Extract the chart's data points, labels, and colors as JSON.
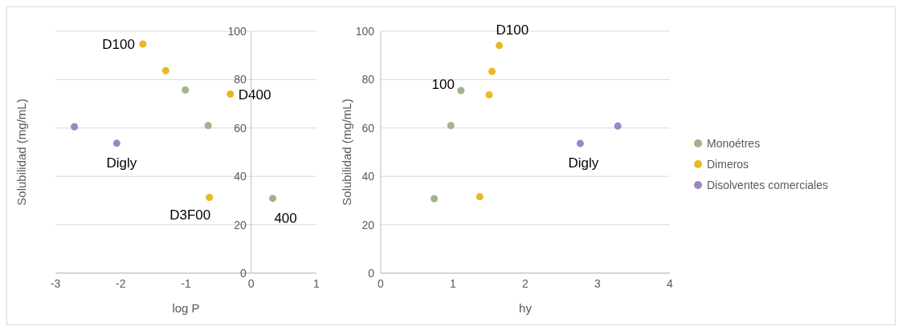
{
  "chart_data": [
    {
      "type": "scatter",
      "xlabel": "log P",
      "ylabel": "Solubilidad (mg/mL)",
      "xlim": [
        -3,
        1
      ],
      "xticks": [
        -3,
        -2,
        -1,
        0,
        1
      ],
      "ylim": [
        0,
        100
      ],
      "yticks": [
        0,
        20,
        40,
        60,
        80,
        100
      ],
      "grid": "y",
      "marker": "circle",
      "series": [
        {
          "color": "#9eb58a",
          "x": [
            -1.01,
            -0.66,
            0.33
          ],
          "values": [
            75.7,
            61,
            30.9
          ]
        },
        {
          "color": "#e9b824",
          "x": [
            -1.66,
            -1.31,
            -0.32,
            -0.64
          ],
          "values": [
            94.7,
            83.7,
            74,
            31.3
          ]
        },
        {
          "color": "#9f85c7",
          "x": [
            -2.71,
            -2.06
          ],
          "values": [
            60.5,
            53.7
          ]
        }
      ],
      "annotations": [
        {
          "text": "D100",
          "x": -1.66,
          "y": 94.7
        },
        {
          "text": "D400",
          "x": -0.32,
          "y": 74
        },
        {
          "text": "Digly",
          "x": -2.06,
          "y": 53.7
        },
        {
          "text": "D3F00",
          "x": -0.64,
          "y": 31.3
        },
        {
          "text": "400",
          "x": 0.33,
          "y": 30.9
        }
      ]
    },
    {
      "type": "scatter",
      "xlabel": "hy",
      "ylabel": "Solubilidad (mg/mL)",
      "xlim": [
        0,
        4
      ],
      "xticks": [
        0,
        1,
        2,
        3,
        4
      ],
      "ylim": [
        0,
        100
      ],
      "yticks": [
        0,
        20,
        40,
        60,
        80,
        100
      ],
      "grid": "y",
      "marker": "circle",
      "legend": "right",
      "series": [
        {
          "name": "Monoétres",
          "color": "#9eb58a",
          "x": [
            1.11,
            0.97,
            0.74
          ],
          "values": [
            75.5,
            61,
            30.8
          ]
        },
        {
          "name": "Dimeros",
          "color": "#e9b824",
          "x": [
            1.64,
            1.54,
            1.5,
            1.37
          ],
          "values": [
            94.1,
            83.4,
            73.7,
            31.6
          ]
        },
        {
          "name": "Disolventes comerciales",
          "color": "#9f85c7",
          "x": [
            2.76,
            3.28
          ],
          "values": [
            53.6,
            60.8
          ]
        }
      ],
      "annotations": [
        {
          "text": "D100",
          "x": 1.64,
          "y": 94.1
        },
        {
          "text": "100",
          "x": 1.11,
          "y": 75.5
        },
        {
          "text": "Digly",
          "x": 2.76,
          "y": 53.6
        }
      ]
    }
  ]
}
